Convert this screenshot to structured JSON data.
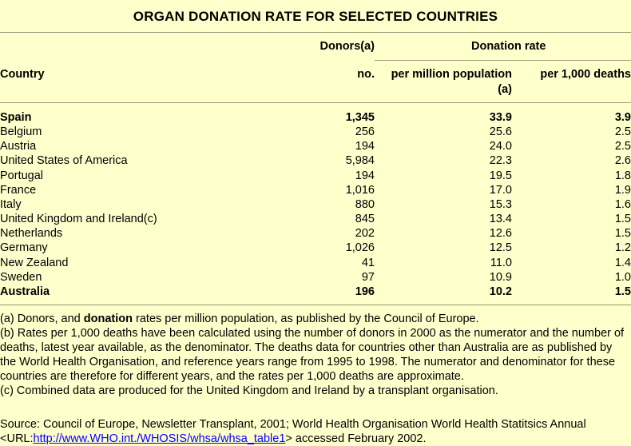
{
  "title": "ORGAN DONATION RATE FOR SELECTED COUNTRIES",
  "headers": {
    "country": "Country",
    "donors_group": "Donors(a)",
    "donors_sub": "no.",
    "rate_group": "Donation rate",
    "per_million_line1": "per million population",
    "per_million_line2": "(a)",
    "per_1000_deaths": "per 1,000 deaths"
  },
  "rows": [
    {
      "country": "Spain",
      "donors": "1,345",
      "per_million": "33.9",
      "per_1000": "3.9",
      "bold": true
    },
    {
      "country": "Belgium",
      "donors": "256",
      "per_million": "25.6",
      "per_1000": "2.5",
      "bold": false
    },
    {
      "country": "Austria",
      "donors": "194",
      "per_million": "24.0",
      "per_1000": "2.5",
      "bold": false
    },
    {
      "country": "United States of America",
      "donors": "5,984",
      "per_million": "22.3",
      "per_1000": "2.6",
      "bold": false
    },
    {
      "country": "Portugal",
      "donors": "194",
      "per_million": "19.5",
      "per_1000": "1.8",
      "bold": false
    },
    {
      "country": "France",
      "donors": "1,016",
      "per_million": "17.0",
      "per_1000": "1.9",
      "bold": false
    },
    {
      "country": "Italy",
      "donors": "880",
      "per_million": "15.3",
      "per_1000": "1.6",
      "bold": false
    },
    {
      "country": "United Kingdom and Ireland(c)",
      "donors": "845",
      "per_million": "13.4",
      "per_1000": "1.5",
      "bold": false
    },
    {
      "country": "Netherlands",
      "donors": "202",
      "per_million": "12.6",
      "per_1000": "1.5",
      "bold": false
    },
    {
      "country": "Germany",
      "donors": "1,026",
      "per_million": "12.5",
      "per_1000": "1.2",
      "bold": false
    },
    {
      "country": "New Zealand",
      "donors": "41",
      "per_million": "11.0",
      "per_1000": "1.4",
      "bold": false
    },
    {
      "country": "Sweden",
      "donors": "97",
      "per_million": "10.9",
      "per_1000": "1.0",
      "bold": false
    },
    {
      "country": "Australia",
      "donors": "196",
      "per_million": "10.2",
      "per_1000": "1.5",
      "bold": true
    }
  ],
  "notes": {
    "a_before": "(a) Donors, and ",
    "a_bold": "donation",
    "a_after": " rates per million population, as published by the Council of Europe.",
    "b": "(b) Rates per 1,000 deaths have been calculated using the number of donors in 2000 as the numerator and the number of deaths, latest year available, as the denominator. The deaths data for countries other than Australia are as published by the World Health Organisation, and reference years range from 1995 to 1998. The numerator and denominator for these countries are therefore for different years, and the rates per 1,000 deaths are approximate.",
    "c": "(c) Combined data are produced for the United Kingdom and Ireland by a transplant organisation."
  },
  "source": {
    "line1": "Source: Council of Europe, Newsletter Transplant, 2001; World Health Organisation World Health Statitsics Annual",
    "line2_prefix": "<URL:",
    "link_text": "http://www.WHO.int./WHOSIS/whsa/whsa_table1",
    "line2_suffix": "> accessed February 2002."
  }
}
